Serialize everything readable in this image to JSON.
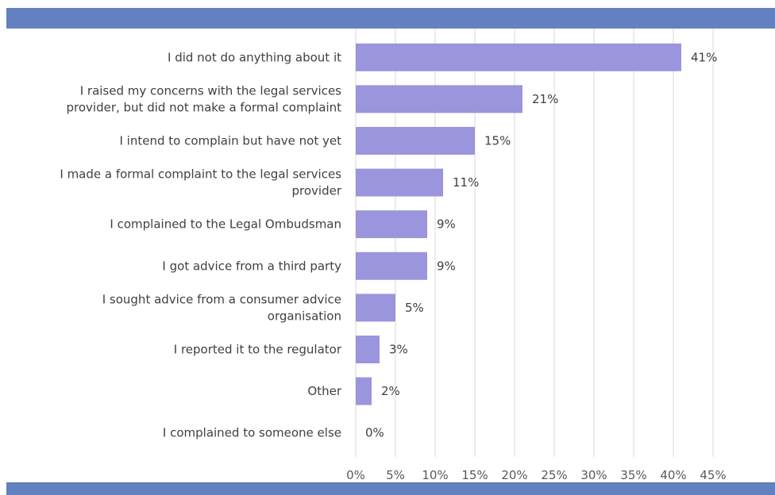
{
  "colors": {
    "band": "#6381c0",
    "bar": "#9b95dd",
    "grid": "#d9d9d9",
    "text": "#404040"
  },
  "chart_data": {
    "type": "bar",
    "orientation": "horizontal",
    "categories": [
      [
        "I did not do anything about it"
      ],
      [
        "I raised my concerns with the legal services",
        "provider, but did not make a formal complaint"
      ],
      [
        "I intend to complain but have not yet"
      ],
      [
        "I made a formal complaint to the legal services",
        "provider"
      ],
      [
        "I complained to the Legal Ombudsman"
      ],
      [
        "I got advice from a third party"
      ],
      [
        "I sought advice from a consumer advice",
        "organisation"
      ],
      [
        "I reported it to the regulator"
      ],
      [
        "Other"
      ],
      [
        "I complained to someone else"
      ]
    ],
    "values": [
      41,
      21,
      15,
      11,
      9,
      9,
      5,
      3,
      2,
      0
    ],
    "data_labels": [
      "41%",
      "21%",
      "15%",
      "11%",
      "9%",
      "9%",
      "5%",
      "3%",
      "2%",
      "0%"
    ],
    "xlim": [
      0,
      45
    ],
    "x_ticks": [
      0,
      5,
      10,
      15,
      20,
      25,
      30,
      35,
      40,
      45
    ],
    "x_tick_labels": [
      "0%",
      "5%",
      "10%",
      "15%",
      "20%",
      "25%",
      "30%",
      "35%",
      "40%",
      "45%"
    ],
    "grid": true,
    "legend": "none",
    "title": "",
    "xlabel": "",
    "ylabel": ""
  }
}
